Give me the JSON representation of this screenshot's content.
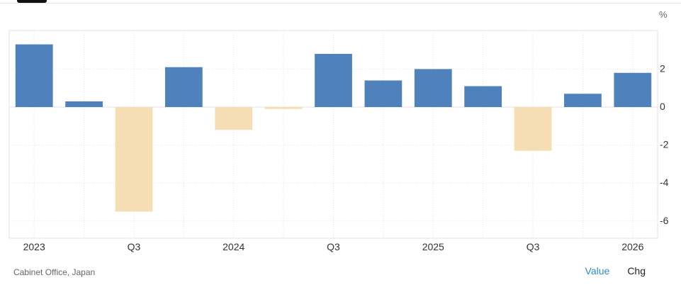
{
  "chart_data": {
    "type": "bar",
    "unit": "%",
    "categories": [
      "Q1 2023",
      "Q2 2023",
      "Q3 2023",
      "Q4 2023",
      "Q1 2024",
      "Q2 2024",
      "Q3 2024",
      "Q4 2024",
      "Q1 2025",
      "Q2 2025",
      "Q3 2025",
      "Q4 2025",
      "Q1 2026"
    ],
    "values": [
      3.3,
      0.3,
      -5.5,
      2.1,
      -1.2,
      -0.1,
      2.8,
      1.4,
      2.0,
      1.1,
      -2.3,
      0.7,
      1.8
    ],
    "x_tick_labels": [
      "2023",
      "",
      "Q3",
      "",
      "2024",
      "",
      "Q3",
      "",
      "2025",
      "",
      "Q3",
      "",
      "2026"
    ],
    "y_ticks": [
      2,
      0,
      -2,
      -4,
      -6
    ],
    "ylim": [
      -6.2,
      3.5
    ],
    "title": "",
    "xlabel": "",
    "ylabel": "",
    "grid": true,
    "colors": {
      "positive": "#4f81bd",
      "negative": "#f5deb3",
      "grid": "#e3e3e3",
      "axis_text": "#333333"
    }
  },
  "source": "Cabinet Office, Japan",
  "view_toggle": {
    "value_label": "Value",
    "chg_label": "Chg"
  }
}
